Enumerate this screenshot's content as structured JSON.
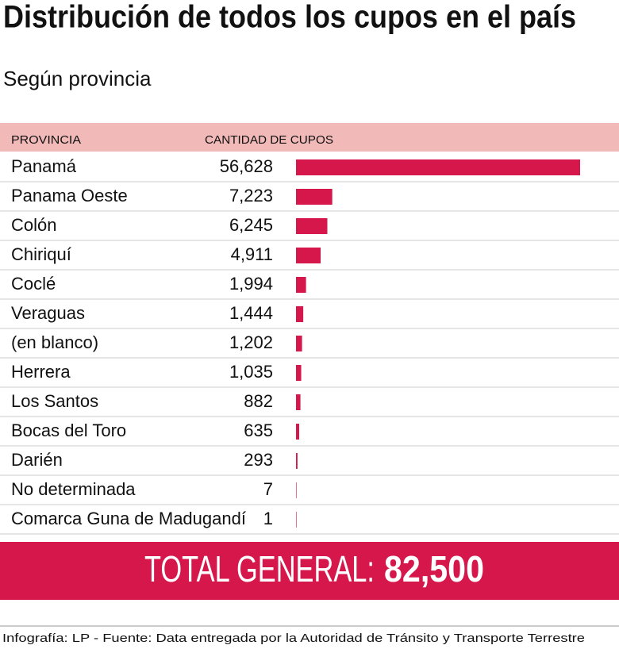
{
  "chart_data": {
    "type": "bar",
    "orientation": "horizontal",
    "title": "Distribución de todos los cupos en el país",
    "subtitle": "Según provincia",
    "columns": [
      "PROVINCIA",
      "CANTIDAD DE CUPOS"
    ],
    "categories": [
      "Panamá",
      "Panama Oeste",
      "Colón",
      "Chiriquí",
      "Coclé",
      "Veraguas",
      "(en blanco)",
      "Herrera",
      "Los Santos",
      "Bocas del Toro",
      "Darién",
      "No determinada",
      "Comarca Guna de Madugandí"
    ],
    "values": [
      56628,
      7223,
      6245,
      4911,
      1994,
      1444,
      1202,
      1035,
      882,
      635,
      293,
      7,
      1
    ],
    "value_labels": [
      "56,628",
      "7,223",
      "6,245",
      "4,911",
      "1,994",
      "1,444",
      "1,202",
      "1,035",
      "882",
      "635",
      "293",
      "7",
      "1"
    ],
    "color": "#d6174b"
  },
  "total": {
    "label": "TOTAL GENERAL:",
    "value": "82,500"
  },
  "footer": "Infografía: LP - Fuente: Data entregada por la Autoridad de Tránsito y Transporte Terrestre"
}
